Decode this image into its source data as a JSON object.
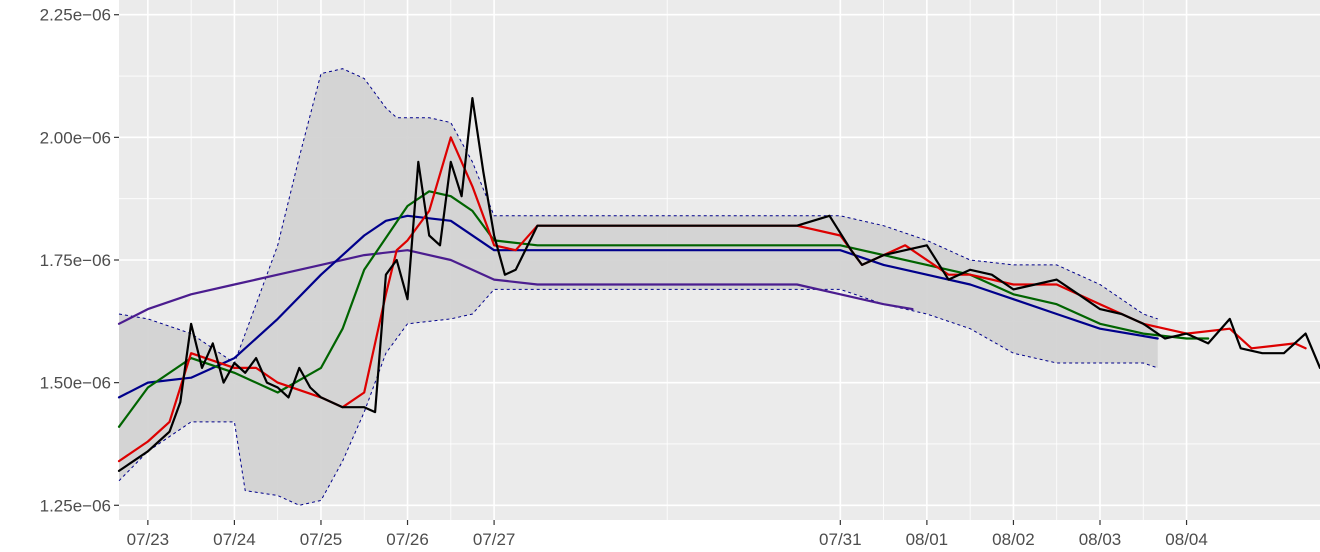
{
  "chart_data": {
    "type": "line",
    "title": "",
    "xlabel": "",
    "ylabel": "",
    "x_axis": {
      "kind": "date",
      "range": [
        "2024-07-22T16:00",
        "2024-08-05T13:00"
      ],
      "ticks": [
        {
          "x": "2024-07-23",
          "label": "07/23"
        },
        {
          "x": "2024-07-24",
          "label": "07/24"
        },
        {
          "x": "2024-07-25",
          "label": "07/25"
        },
        {
          "x": "2024-07-26",
          "label": "07/26"
        },
        {
          "x": "2024-07-27",
          "label": "07/27"
        },
        {
          "x": "2024-07-31",
          "label": "07/31"
        },
        {
          "x": "2024-08-01",
          "label": "08/01"
        },
        {
          "x": "2024-08-02",
          "label": "08/02"
        },
        {
          "x": "2024-08-03",
          "label": "08/03"
        },
        {
          "x": "2024-08-04",
          "label": "08/04"
        }
      ]
    },
    "y_axis": {
      "ylim": [
        1.22e-06,
        2.28e-06
      ],
      "ticks": [
        {
          "y": 1.25e-06,
          "label": "1.25e−06"
        },
        {
          "y": 1.5e-06,
          "label": "1.50e−06"
        },
        {
          "y": 1.75e-06,
          "label": "1.75e−06"
        },
        {
          "y": 2e-06,
          "label": "2.00e−06"
        },
        {
          "y": 2.25e-06,
          "label": "2.25e−06"
        }
      ]
    },
    "grid": true,
    "background": "#ebebeb",
    "bollinger_band": {
      "color": "#00008b",
      "fill": "#d3d3d3",
      "upper": [
        [
          "2024-07-22T16:00",
          1.64e-06
        ],
        [
          "2024-07-23T00:00",
          1.63e-06
        ],
        [
          "2024-07-23T12:00",
          1.6e-06
        ],
        [
          "2024-07-24T00:00",
          1.54e-06
        ],
        [
          "2024-07-24T06:00",
          1.66e-06
        ],
        [
          "2024-07-24T12:00",
          1.78e-06
        ],
        [
          "2024-07-24T18:00",
          1.96e-06
        ],
        [
          "2024-07-25T00:00",
          2.13e-06
        ],
        [
          "2024-07-25T06:00",
          2.14e-06
        ],
        [
          "2024-07-25T12:00",
          2.12e-06
        ],
        [
          "2024-07-25T18:00",
          2.06e-06
        ],
        [
          "2024-07-25T21:00",
          2.04e-06
        ],
        [
          "2024-07-26T06:00",
          2.04e-06
        ],
        [
          "2024-07-26T12:00",
          2.03e-06
        ],
        [
          "2024-07-26T18:00",
          1.95e-06
        ],
        [
          "2024-07-27T00:00",
          1.84e-06
        ],
        [
          "2024-07-27T12:00",
          1.84e-06
        ],
        [
          "2024-07-30T12:00",
          1.84e-06
        ],
        [
          "2024-07-31T00:00",
          1.84e-06
        ],
        [
          "2024-07-31T12:00",
          1.82e-06
        ],
        [
          "2024-08-01T00:00",
          1.79e-06
        ],
        [
          "2024-08-01T12:00",
          1.75e-06
        ],
        [
          "2024-08-02T00:00",
          1.74e-06
        ],
        [
          "2024-08-02T12:00",
          1.74e-06
        ],
        [
          "2024-08-03T00:00",
          1.7e-06
        ],
        [
          "2024-08-03T12:00",
          1.64e-06
        ],
        [
          "2024-08-03T16:00",
          1.63e-06
        ]
      ],
      "lower": [
        [
          "2024-07-22T16:00",
          1.3e-06
        ],
        [
          "2024-07-23T00:00",
          1.36e-06
        ],
        [
          "2024-07-23T12:00",
          1.42e-06
        ],
        [
          "2024-07-24T00:00",
          1.42e-06
        ],
        [
          "2024-07-24T03:00",
          1.28e-06
        ],
        [
          "2024-07-24T12:00",
          1.27e-06
        ],
        [
          "2024-07-24T18:00",
          1.25e-06
        ],
        [
          "2024-07-25T00:00",
          1.26e-06
        ],
        [
          "2024-07-25T06:00",
          1.34e-06
        ],
        [
          "2024-07-25T12:00",
          1.44e-06
        ],
        [
          "2024-07-25T18:00",
          1.56e-06
        ],
        [
          "2024-07-26T00:00",
          1.62e-06
        ],
        [
          "2024-07-26T12:00",
          1.63e-06
        ],
        [
          "2024-07-26T18:00",
          1.64e-06
        ],
        [
          "2024-07-27T00:00",
          1.69e-06
        ],
        [
          "2024-07-27T12:00",
          1.69e-06
        ],
        [
          "2024-07-30T12:00",
          1.69e-06
        ],
        [
          "2024-07-31T00:00",
          1.69e-06
        ],
        [
          "2024-07-31T12:00",
          1.66e-06
        ],
        [
          "2024-08-01T00:00",
          1.64e-06
        ],
        [
          "2024-08-01T12:00",
          1.61e-06
        ],
        [
          "2024-08-02T00:00",
          1.56e-06
        ],
        [
          "2024-08-02T12:00",
          1.54e-06
        ],
        [
          "2024-08-03T00:00",
          1.54e-06
        ],
        [
          "2024-08-03T12:00",
          1.54e-06
        ],
        [
          "2024-08-03T16:00",
          1.53e-06
        ]
      ]
    },
    "series": [
      {
        "color": "#000000",
        "points": [
          [
            "2024-07-22T16:00",
            1.32e-06
          ],
          [
            "2024-07-23T00:00",
            1.36e-06
          ],
          [
            "2024-07-23T03:00",
            1.38e-06
          ],
          [
            "2024-07-23T06:00",
            1.4e-06
          ],
          [
            "2024-07-23T09:00",
            1.46e-06
          ],
          [
            "2024-07-23T12:00",
            1.62e-06
          ],
          [
            "2024-07-23T15:00",
            1.53e-06
          ],
          [
            "2024-07-23T18:00",
            1.58e-06
          ],
          [
            "2024-07-23T21:00",
            1.5e-06
          ],
          [
            "2024-07-24T00:00",
            1.54e-06
          ],
          [
            "2024-07-24T03:00",
            1.52e-06
          ],
          [
            "2024-07-24T06:00",
            1.55e-06
          ],
          [
            "2024-07-24T09:00",
            1.5e-06
          ],
          [
            "2024-07-24T12:00",
            1.49e-06
          ],
          [
            "2024-07-24T15:00",
            1.47e-06
          ],
          [
            "2024-07-24T18:00",
            1.53e-06
          ],
          [
            "2024-07-24T21:00",
            1.49e-06
          ],
          [
            "2024-07-25T00:00",
            1.47e-06
          ],
          [
            "2024-07-25T06:00",
            1.45e-06
          ],
          [
            "2024-07-25T12:00",
            1.45e-06
          ],
          [
            "2024-07-25T15:00",
            1.44e-06
          ],
          [
            "2024-07-25T18:00",
            1.72e-06
          ],
          [
            "2024-07-25T21:00",
            1.75e-06
          ],
          [
            "2024-07-26T00:00",
            1.67e-06
          ],
          [
            "2024-07-26T03:00",
            1.95e-06
          ],
          [
            "2024-07-26T06:00",
            1.8e-06
          ],
          [
            "2024-07-26T09:00",
            1.78e-06
          ],
          [
            "2024-07-26T12:00",
            1.95e-06
          ],
          [
            "2024-07-26T15:00",
            1.88e-06
          ],
          [
            "2024-07-26T18:00",
            2.08e-06
          ],
          [
            "2024-07-26T21:00",
            1.93e-06
          ],
          [
            "2024-07-27T00:00",
            1.8e-06
          ],
          [
            "2024-07-27T03:00",
            1.72e-06
          ],
          [
            "2024-07-27T06:00",
            1.73e-06
          ],
          [
            "2024-07-27T12:00",
            1.82e-06
          ],
          [
            "2024-07-30T12:00",
            1.82e-06
          ],
          [
            "2024-07-30T21:00",
            1.84e-06
          ],
          [
            "2024-07-31T03:00",
            1.77e-06
          ],
          [
            "2024-07-31T06:00",
            1.74e-06
          ],
          [
            "2024-07-31T12:00",
            1.76e-06
          ],
          [
            "2024-07-31T18:00",
            1.77e-06
          ],
          [
            "2024-08-01T00:00",
            1.78e-06
          ],
          [
            "2024-08-01T06:00",
            1.71e-06
          ],
          [
            "2024-08-01T12:00",
            1.73e-06
          ],
          [
            "2024-08-01T18:00",
            1.72e-06
          ],
          [
            "2024-08-02T00:00",
            1.69e-06
          ],
          [
            "2024-08-02T06:00",
            1.7e-06
          ],
          [
            "2024-08-02T12:00",
            1.71e-06
          ],
          [
            "2024-08-02T18:00",
            1.68e-06
          ],
          [
            "2024-08-03T00:00",
            1.65e-06
          ],
          [
            "2024-08-03T06:00",
            1.64e-06
          ],
          [
            "2024-08-03T12:00",
            1.62e-06
          ],
          [
            "2024-08-03T18:00",
            1.59e-06
          ],
          [
            "2024-08-04T00:00",
            1.6e-06
          ],
          [
            "2024-08-04T06:00",
            1.58e-06
          ],
          [
            "2024-08-04T12:00",
            1.63e-06
          ],
          [
            "2024-08-04T15:00",
            1.57e-06
          ],
          [
            "2024-08-04T21:00",
            1.56e-06
          ],
          [
            "2024-08-05T03:00",
            1.56e-06
          ],
          [
            "2024-08-05T09:00",
            1.6e-06
          ],
          [
            "2024-08-05T13:00",
            1.53e-06
          ]
        ]
      },
      {
        "color": "#dd0000",
        "points": [
          [
            "2024-07-22T16:00",
            1.34e-06
          ],
          [
            "2024-07-23T00:00",
            1.38e-06
          ],
          [
            "2024-07-23T06:00",
            1.42e-06
          ],
          [
            "2024-07-23T12:00",
            1.56e-06
          ],
          [
            "2024-07-24T00:00",
            1.53e-06
          ],
          [
            "2024-07-24T06:00",
            1.53e-06
          ],
          [
            "2024-07-24T12:00",
            1.5e-06
          ],
          [
            "2024-07-25T00:00",
            1.47e-06
          ],
          [
            "2024-07-25T06:00",
            1.45e-06
          ],
          [
            "2024-07-25T12:00",
            1.48e-06
          ],
          [
            "2024-07-25T18:00",
            1.68e-06
          ],
          [
            "2024-07-25T21:00",
            1.77e-06
          ],
          [
            "2024-07-26T00:00",
            1.79e-06
          ],
          [
            "2024-07-26T06:00",
            1.85e-06
          ],
          [
            "2024-07-26T12:00",
            2e-06
          ],
          [
            "2024-07-26T18:00",
            1.9e-06
          ],
          [
            "2024-07-27T00:00",
            1.78e-06
          ],
          [
            "2024-07-27T06:00",
            1.77e-06
          ],
          [
            "2024-07-27T12:00",
            1.82e-06
          ],
          [
            "2024-07-30T12:00",
            1.82e-06
          ],
          [
            "2024-07-31T00:00",
            1.8e-06
          ],
          [
            "2024-07-31T06:00",
            1.74e-06
          ],
          [
            "2024-07-31T12:00",
            1.76e-06
          ],
          [
            "2024-07-31T18:00",
            1.78e-06
          ],
          [
            "2024-08-01T06:00",
            1.72e-06
          ],
          [
            "2024-08-01T12:00",
            1.72e-06
          ],
          [
            "2024-08-02T00:00",
            1.7e-06
          ],
          [
            "2024-08-02T12:00",
            1.7e-06
          ],
          [
            "2024-08-03T00:00",
            1.66e-06
          ],
          [
            "2024-08-03T12:00",
            1.62e-06
          ],
          [
            "2024-08-04T00:00",
            1.6e-06
          ],
          [
            "2024-08-04T12:00",
            1.61e-06
          ],
          [
            "2024-08-04T18:00",
            1.57e-06
          ],
          [
            "2024-08-05T06:00",
            1.58e-06
          ],
          [
            "2024-08-05T09:00",
            1.57e-06
          ]
        ]
      },
      {
        "color": "#006400",
        "points": [
          [
            "2024-07-22T16:00",
            1.41e-06
          ],
          [
            "2024-07-23T00:00",
            1.49e-06
          ],
          [
            "2024-07-23T12:00",
            1.55e-06
          ],
          [
            "2024-07-24T00:00",
            1.52e-06
          ],
          [
            "2024-07-24T12:00",
            1.48e-06
          ],
          [
            "2024-07-25T00:00",
            1.53e-06
          ],
          [
            "2024-07-25T06:00",
            1.61e-06
          ],
          [
            "2024-07-25T12:00",
            1.73e-06
          ],
          [
            "2024-07-26T00:00",
            1.86e-06
          ],
          [
            "2024-07-26T06:00",
            1.89e-06
          ],
          [
            "2024-07-26T12:00",
            1.88e-06
          ],
          [
            "2024-07-26T18:00",
            1.85e-06
          ],
          [
            "2024-07-27T00:00",
            1.79e-06
          ],
          [
            "2024-07-27T12:00",
            1.78e-06
          ],
          [
            "2024-07-30T12:00",
            1.78e-06
          ],
          [
            "2024-07-31T00:00",
            1.78e-06
          ],
          [
            "2024-07-31T12:00",
            1.76e-06
          ],
          [
            "2024-08-01T00:00",
            1.74e-06
          ],
          [
            "2024-08-01T12:00",
            1.72e-06
          ],
          [
            "2024-08-02T00:00",
            1.68e-06
          ],
          [
            "2024-08-02T12:00",
            1.66e-06
          ],
          [
            "2024-08-03T00:00",
            1.62e-06
          ],
          [
            "2024-08-03T12:00",
            1.6e-06
          ],
          [
            "2024-08-04T00:00",
            1.59e-06
          ],
          [
            "2024-08-04T06:00",
            1.59e-06
          ]
        ]
      },
      {
        "color": "#00008b",
        "points": [
          [
            "2024-07-22T16:00",
            1.47e-06
          ],
          [
            "2024-07-23T00:00",
            1.5e-06
          ],
          [
            "2024-07-23T12:00",
            1.51e-06
          ],
          [
            "2024-07-24T00:00",
            1.55e-06
          ],
          [
            "2024-07-24T12:00",
            1.63e-06
          ],
          [
            "2024-07-25T00:00",
            1.72e-06
          ],
          [
            "2024-07-25T12:00",
            1.8e-06
          ],
          [
            "2024-07-25T18:00",
            1.83e-06
          ],
          [
            "2024-07-26T00:00",
            1.84e-06
          ],
          [
            "2024-07-26T12:00",
            1.83e-06
          ],
          [
            "2024-07-27T00:00",
            1.77e-06
          ],
          [
            "2024-07-30T12:00",
            1.77e-06
          ],
          [
            "2024-07-31T00:00",
            1.77e-06
          ],
          [
            "2024-07-31T12:00",
            1.74e-06
          ],
          [
            "2024-08-01T00:00",
            1.72e-06
          ],
          [
            "2024-08-01T12:00",
            1.7e-06
          ],
          [
            "2024-08-02T00:00",
            1.67e-06
          ],
          [
            "2024-08-02T12:00",
            1.64e-06
          ],
          [
            "2024-08-03T00:00",
            1.61e-06
          ],
          [
            "2024-08-03T16:00",
            1.59e-06
          ]
        ]
      },
      {
        "color": "#4b1d8f",
        "points": [
          [
            "2024-07-22T16:00",
            1.62e-06
          ],
          [
            "2024-07-23T00:00",
            1.65e-06
          ],
          [
            "2024-07-23T12:00",
            1.68e-06
          ],
          [
            "2024-07-24T00:00",
            1.7e-06
          ],
          [
            "2024-07-24T12:00",
            1.72e-06
          ],
          [
            "2024-07-25T00:00",
            1.74e-06
          ],
          [
            "2024-07-25T12:00",
            1.76e-06
          ],
          [
            "2024-07-26T00:00",
            1.77e-06
          ],
          [
            "2024-07-26T12:00",
            1.75e-06
          ],
          [
            "2024-07-27T00:00",
            1.71e-06
          ],
          [
            "2024-07-27T12:00",
            1.7e-06
          ],
          [
            "2024-07-30T12:00",
            1.7e-06
          ],
          [
            "2024-07-31T00:00",
            1.68e-06
          ],
          [
            "2024-07-31T12:00",
            1.66e-06
          ],
          [
            "2024-07-31T20:00",
            1.65e-06
          ]
        ]
      }
    ]
  }
}
